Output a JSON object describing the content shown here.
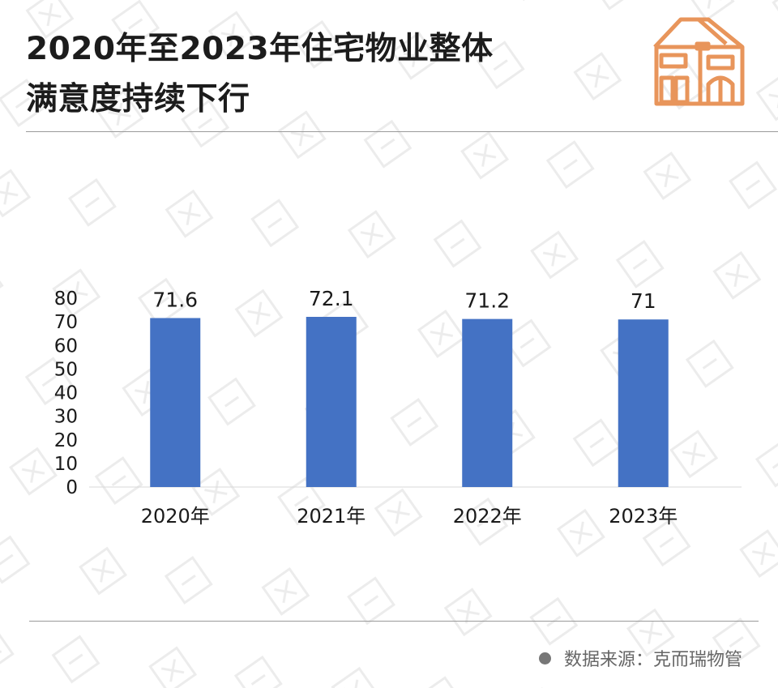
{
  "title": {
    "line1": "2020年至2023年住宅物业整体",
    "line2": "满意度持续下行"
  },
  "footer": {
    "source": "数据来源：克而瑞物管"
  },
  "colors": {
    "bar": "#4472C4",
    "icon": "#E8955B",
    "rule": "#9a9a9a"
  },
  "icons": [
    "house-icon",
    "bullet-dot-icon"
  ],
  "chart_data": {
    "type": "bar",
    "title": "",
    "xlabel": "",
    "ylabel": "",
    "categories": [
      "2020年",
      "2021年",
      "2022年",
      "2023年"
    ],
    "values": [
      71.6,
      72.1,
      71.2,
      71
    ],
    "data_labels": [
      "71.6",
      "72.1",
      "71.2",
      "71"
    ],
    "ylim": [
      0,
      80
    ],
    "yticks": [
      0,
      10,
      20,
      30,
      40,
      50,
      60,
      70,
      80
    ],
    "grid": false,
    "legend": "none"
  }
}
